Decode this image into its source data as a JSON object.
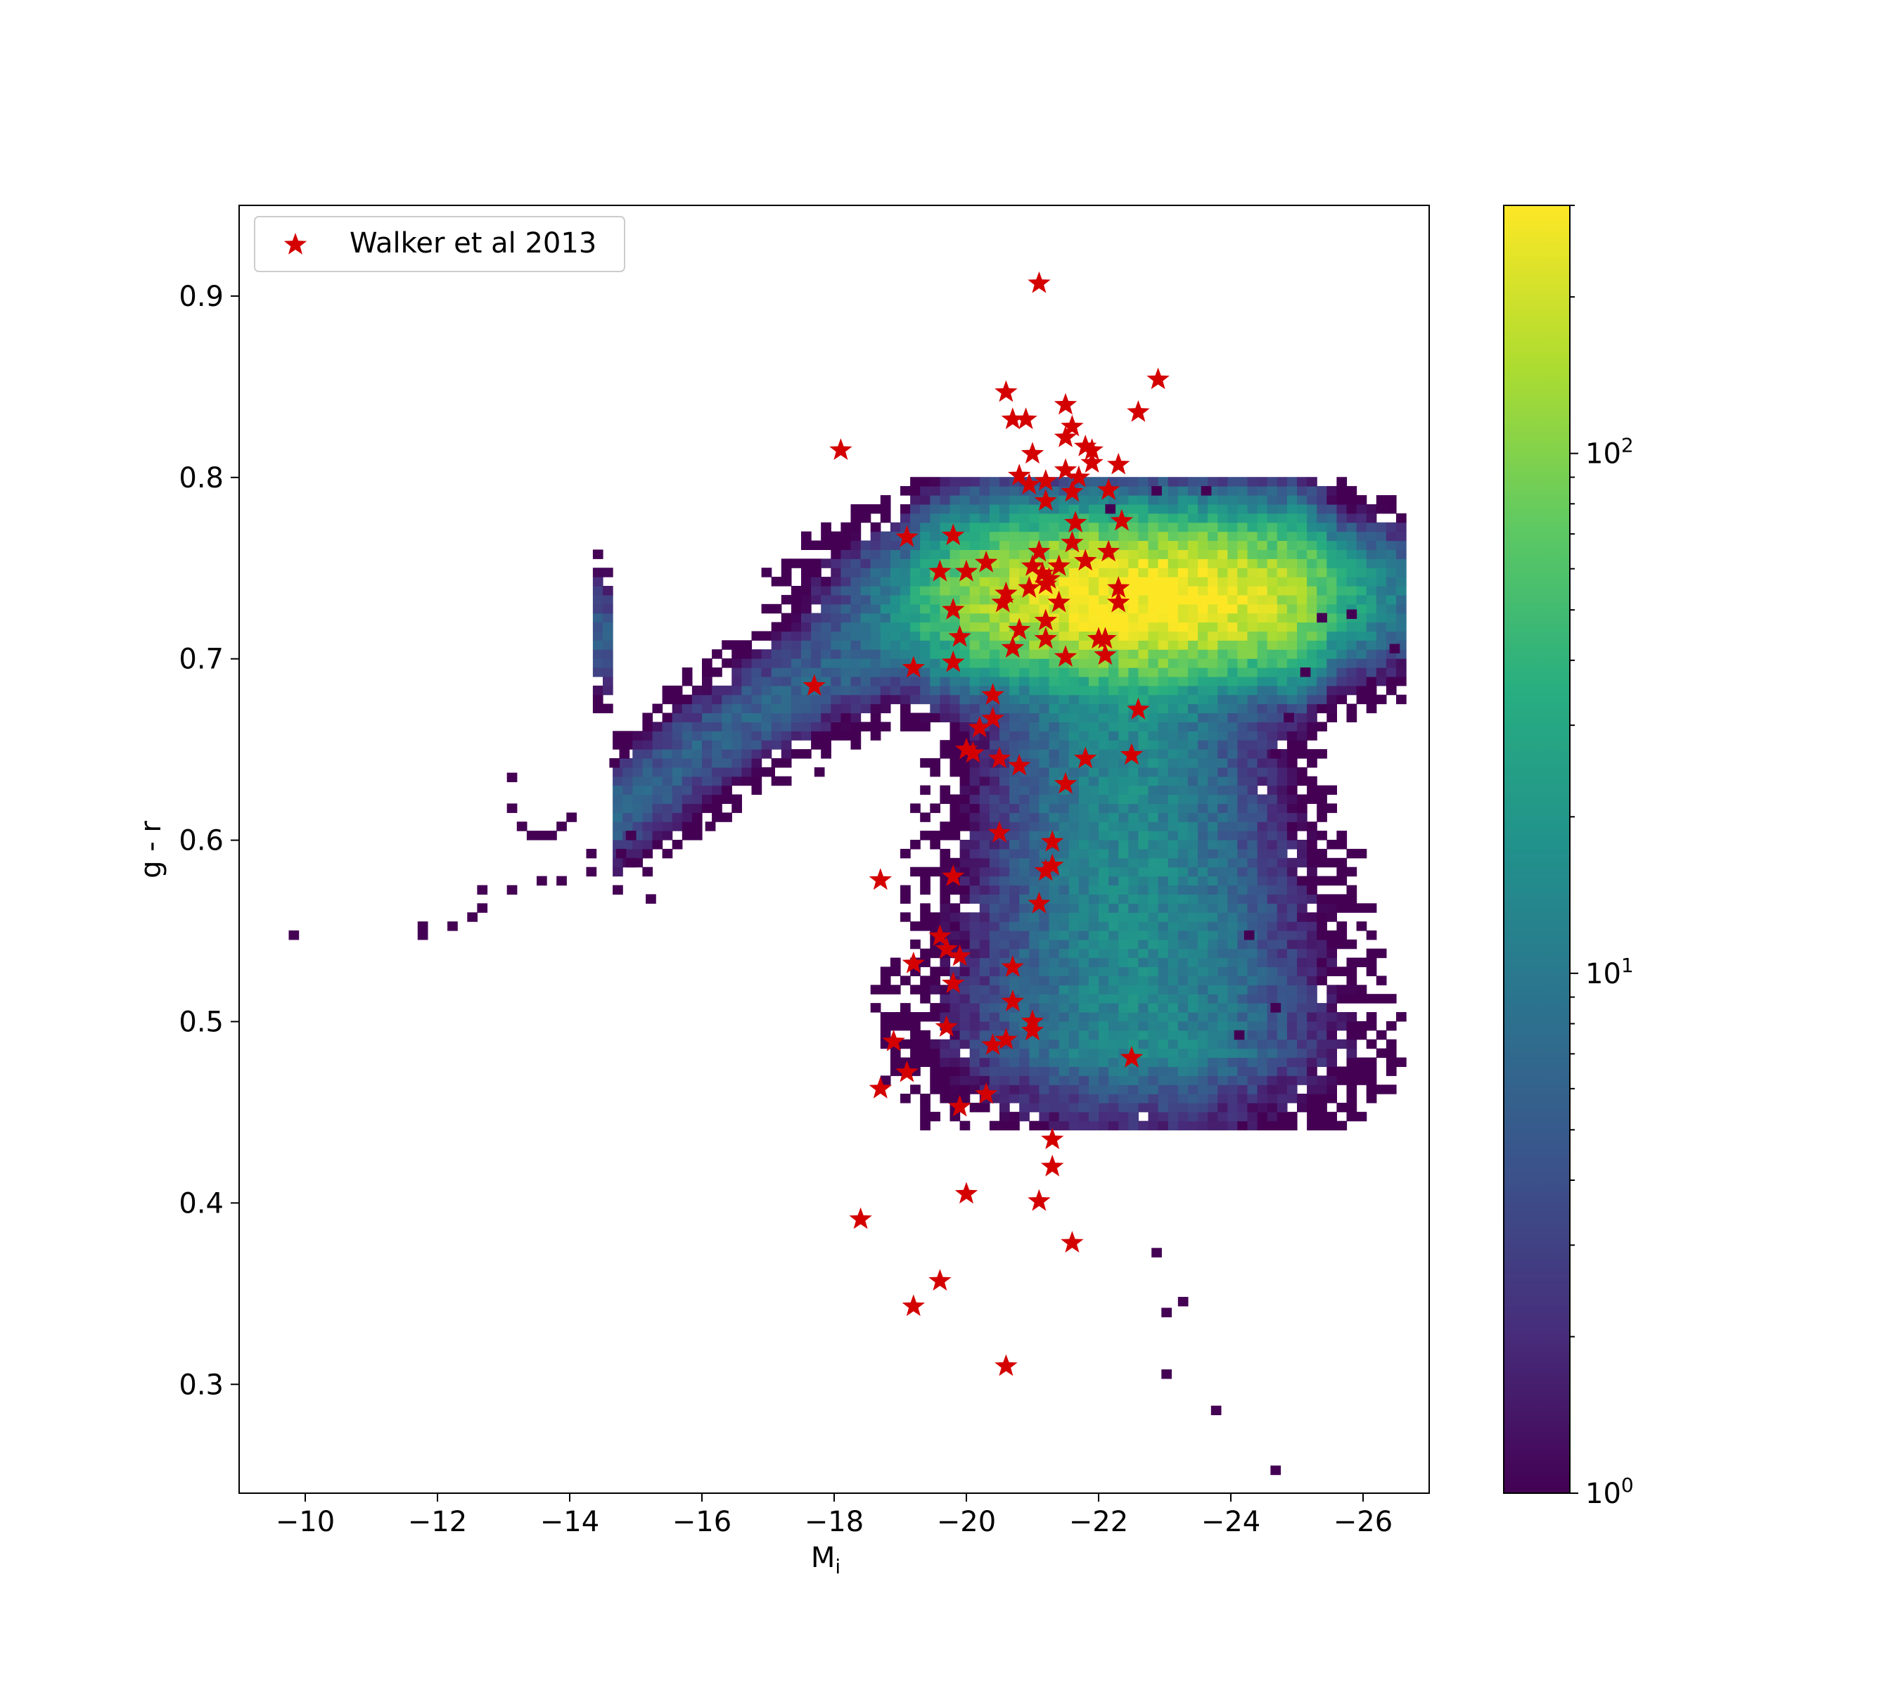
{
  "chart_data": {
    "type": "heatmap",
    "title": "",
    "xlabel": "M",
    "xlabel_subscript": "i",
    "ylabel": "g - r",
    "xlim": [
      -9,
      -27
    ],
    "ylim": [
      0.24,
      0.95
    ],
    "x_inverted": true,
    "grid": false,
    "x_ticks": [
      -10,
      -12,
      -14,
      -16,
      -18,
      -20,
      -22,
      -24,
      -26
    ],
    "x_tick_labels": [
      "−10",
      "−12",
      "−14",
      "−16",
      "−18",
      "−20",
      "−22",
      "−24",
      "−26"
    ],
    "y_ticks": [
      0.3,
      0.4,
      0.5,
      0.6,
      0.7,
      0.8,
      0.9
    ],
    "y_tick_labels": [
      "0.3",
      "0.4",
      "0.5",
      "0.6",
      "0.7",
      "0.8",
      "0.9"
    ],
    "colormap": "viridis",
    "colorbar": {
      "scale": "log",
      "range": [
        1,
        300
      ],
      "ticks": [
        1,
        10,
        100
      ],
      "tick_labels": [
        "10",
        "10",
        "10"
      ],
      "tick_exponents": [
        "0",
        "1",
        "2"
      ]
    },
    "legend": {
      "position": "upper-left",
      "entries": [
        {
          "label": "Walker et al 2013",
          "marker": "star",
          "color": "#d40000"
        }
      ]
    },
    "walker_points": [
      [
        -21.1,
        0.907
      ],
      [
        -22.9,
        0.854
      ],
      [
        -20.6,
        0.847
      ],
      [
        -22.6,
        0.836
      ],
      [
        -20.7,
        0.832
      ],
      [
        -20.9,
        0.832
      ],
      [
        -21.5,
        0.84
      ],
      [
        -21.6,
        0.828
      ],
      [
        -21.5,
        0.822
      ],
      [
        -21.8,
        0.817
      ],
      [
        -21.9,
        0.815
      ],
      [
        -21.0,
        0.813
      ],
      [
        -21.9,
        0.808
      ],
      [
        -18.1,
        0.815
      ],
      [
        -22.3,
        0.807
      ],
      [
        -21.5,
        0.804
      ],
      [
        -21.7,
        0.8
      ],
      [
        -20.8,
        0.801
      ],
      [
        -21.2,
        0.798
      ],
      [
        -20.95,
        0.796
      ],
      [
        -22.15,
        0.793
      ],
      [
        -21.6,
        0.792
      ],
      [
        -21.2,
        0.787
      ],
      [
        -22.35,
        0.776
      ],
      [
        -21.65,
        0.775
      ],
      [
        -19.1,
        0.767
      ],
      [
        -19.8,
        0.768
      ],
      [
        -21.6,
        0.764
      ],
      [
        -21.1,
        0.759
      ],
      [
        -22.15,
        0.759
      ],
      [
        -21.8,
        0.754
      ],
      [
        -20.3,
        0.753
      ],
      [
        -21.0,
        0.751
      ],
      [
        -21.4,
        0.751
      ],
      [
        -19.6,
        0.748
      ],
      [
        -20.0,
        0.748
      ],
      [
        -21.15,
        0.747
      ],
      [
        -21.25,
        0.744
      ],
      [
        -21.2,
        0.741
      ],
      [
        -20.95,
        0.739
      ],
      [
        -22.3,
        0.739
      ],
      [
        -20.6,
        0.736
      ],
      [
        -20.55,
        0.731
      ],
      [
        -21.4,
        0.731
      ],
      [
        -22.3,
        0.731
      ],
      [
        -19.8,
        0.727
      ],
      [
        -21.2,
        0.721
      ],
      [
        -20.8,
        0.716
      ],
      [
        -19.9,
        0.712
      ],
      [
        -21.2,
        0.711
      ],
      [
        -22.0,
        0.711
      ],
      [
        -22.1,
        0.711
      ],
      [
        -20.7,
        0.706
      ],
      [
        -21.5,
        0.701
      ],
      [
        -22.1,
        0.702
      ],
      [
        -19.8,
        0.698
      ],
      [
        -19.2,
        0.695
      ],
      [
        -17.7,
        0.685
      ],
      [
        -20.4,
        0.68
      ],
      [
        -22.6,
        0.672
      ],
      [
        -20.4,
        0.667
      ],
      [
        -20.2,
        0.662
      ],
      [
        -20.0,
        0.65
      ],
      [
        -20.1,
        0.648
      ],
      [
        -20.5,
        0.645
      ],
      [
        -22.5,
        0.647
      ],
      [
        -21.8,
        0.645
      ],
      [
        -20.8,
        0.641
      ],
      [
        -21.5,
        0.631
      ],
      [
        -20.5,
        0.604
      ],
      [
        -21.3,
        0.599
      ],
      [
        -21.3,
        0.586
      ],
      [
        -21.2,
        0.583
      ],
      [
        -18.7,
        0.578
      ],
      [
        -19.8,
        0.58
      ],
      [
        -21.1,
        0.565
      ],
      [
        -19.6,
        0.547
      ],
      [
        -19.7,
        0.54
      ],
      [
        -19.9,
        0.536
      ],
      [
        -19.2,
        0.532
      ],
      [
        -20.7,
        0.53
      ],
      [
        -19.8,
        0.521
      ],
      [
        -20.7,
        0.511
      ],
      [
        -21.0,
        0.5
      ],
      [
        -21.0,
        0.495
      ],
      [
        -19.7,
        0.497
      ],
      [
        -20.6,
        0.49
      ],
      [
        -20.4,
        0.487
      ],
      [
        -18.9,
        0.489
      ],
      [
        -22.5,
        0.48
      ],
      [
        -19.1,
        0.472
      ],
      [
        -18.7,
        0.463
      ],
      [
        -20.3,
        0.46
      ],
      [
        -19.9,
        0.453
      ],
      [
        -21.3,
        0.435
      ],
      [
        -21.3,
        0.42
      ],
      [
        -20.0,
        0.405
      ],
      [
        -21.1,
        0.401
      ],
      [
        -18.4,
        0.391
      ],
      [
        -21.6,
        0.378
      ],
      [
        -19.6,
        0.357
      ],
      [
        -19.2,
        0.343
      ],
      [
        -20.6,
        0.31
      ]
    ],
    "density_isolated_bins": [
      [
        -9.75,
        0.545
      ],
      [
        -11.7,
        0.545
      ],
      [
        -11.7,
        0.55
      ],
      [
        -12.15,
        0.55
      ],
      [
        -12.45,
        0.555
      ],
      [
        -12.6,
        0.56
      ],
      [
        -12.6,
        0.57
      ],
      [
        -13.05,
        0.57
      ],
      [
        -13.5,
        0.575
      ],
      [
        -13.05,
        0.615
      ],
      [
        -13.05,
        0.632
      ],
      [
        -13.2,
        0.605
      ],
      [
        -13.35,
        0.6
      ],
      [
        -13.5,
        0.6
      ],
      [
        -13.65,
        0.6
      ],
      [
        -13.8,
        0.605
      ],
      [
        -13.95,
        0.61
      ],
      [
        -13.8,
        0.575
      ],
      [
        -14.25,
        0.58
      ],
      [
        -14.25,
        0.59
      ],
      [
        -14.7,
        0.59
      ],
      [
        -14.85,
        0.585
      ],
      [
        -14.85,
        0.6
      ],
      [
        -15.15,
        0.565
      ],
      [
        -16.05,
        0.605
      ],
      [
        -16.95,
        0.635
      ],
      [
        -17.7,
        0.635
      ],
      [
        -14.6,
        0.64
      ],
      [
        -14.75,
        0.645
      ],
      [
        -22.95,
        0.303
      ],
      [
        -23.7,
        0.283
      ],
      [
        -24.6,
        0.25
      ],
      [
        -25.3,
        0.545
      ],
      [
        -25.75,
        0.722
      ],
      [
        -26.4,
        0.703
      ],
      [
        -25.3,
        0.72
      ],
      [
        -25.05,
        0.69
      ],
      [
        -24.8,
        0.665
      ],
      [
        -24.6,
        0.645
      ],
      [
        -22.8,
        0.37
      ],
      [
        -22.95,
        0.337
      ],
      [
        -23.2,
        0.343
      ],
      [
        -24.05,
        0.49
      ],
      [
        -24.6,
        0.505
      ],
      [
        -24.2,
        0.545
      ],
      [
        -22.1,
        0.78
      ],
      [
        -22.8,
        0.79
      ],
      [
        -23.55,
        0.79
      ]
    ],
    "density_regions": [
      {
        "name": "upper branch (faint-blue tail)",
        "x_range": [
          -14.6,
          -19.5
        ],
        "y_center_at_x": [
          [
            -14.6,
            0.612
          ],
          [
            -16.0,
            0.65
          ],
          [
            -17.5,
            0.685
          ],
          [
            -19.0,
            0.71
          ]
        ],
        "peak_count": 6
      },
      {
        "name": "red sequence peak",
        "x_center": -22.6,
        "y_center": 0.731,
        "x_spread": 1.5,
        "y_spread": 0.02,
        "peak_count": 300
      },
      {
        "name": "red sequence extension",
        "x_range": [
          -19.0,
          -25.5
        ],
        "y_center": 0.732,
        "peak_count": 60
      },
      {
        "name": "blue cloud plume",
        "x_center": -22.3,
        "y_range": [
          0.48,
          0.7
        ],
        "peak_count": 15
      }
    ]
  }
}
